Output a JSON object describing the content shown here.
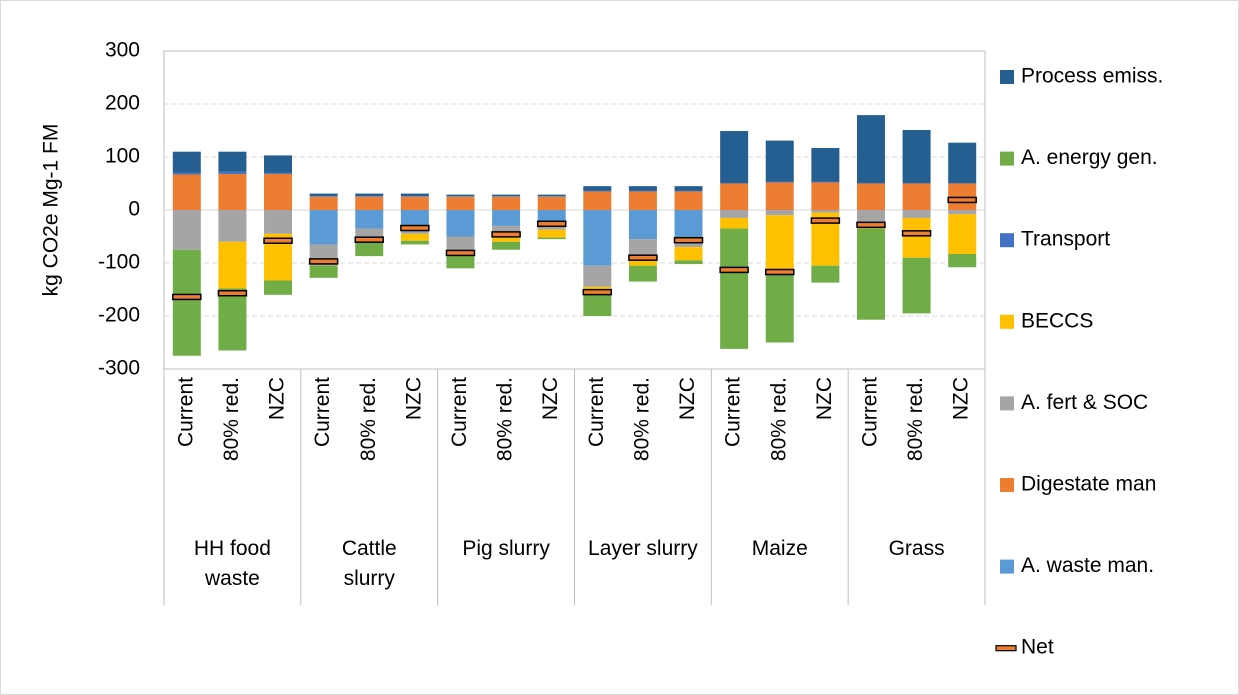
{
  "chart_data": {
    "type": "stacked-bar",
    "y_label": "kg CO2e Mg-1 FM",
    "groups": [
      "HH food waste",
      "Cattle slurry",
      "Pig slurry",
      "Layer slurry",
      "Maize",
      "Grass"
    ],
    "categories": [
      "Current",
      "80% red.",
      "NZC",
      "Current",
      "80% red.",
      "NZC",
      "Current",
      "80% red.",
      "NZC",
      "Current",
      "80% red.",
      "NZC",
      "Current",
      "80% red.",
      "NZC",
      "Current",
      "80% red.",
      "NZC"
    ],
    "ylim": [
      -300,
      300
    ],
    "yticks": [
      -300,
      -200,
      -100,
      0,
      100,
      200,
      300
    ],
    "grid": true,
    "series": [
      {
        "name": "Process emiss.",
        "color": "#255e91",
        "values": [
          40,
          38,
          33,
          5,
          5,
          5,
          3,
          3,
          3,
          9,
          9,
          9,
          98,
          78,
          64,
          128,
          100,
          76
        ]
      },
      {
        "name": "A. energy gen.",
        "color": "#70ad47",
        "values": [
          -200,
          -117,
          -27,
          -23,
          -27,
          -7,
          -30,
          -15,
          -3,
          -50,
          -30,
          -7,
          -227,
          -135,
          -32,
          -172,
          -105,
          -25
        ]
      },
      {
        "name": "Transport",
        "color": "#4472c4",
        "values": [
          3,
          4,
          2,
          1,
          1,
          1,
          1,
          1,
          1,
          1,
          1,
          1,
          1,
          1,
          1,
          1,
          1,
          1
        ]
      },
      {
        "name": "BECCS",
        "color": "#ffc000",
        "values": [
          0,
          -88,
          -88,
          0,
          -5,
          -13,
          0,
          -15,
          -15,
          -5,
          -20,
          -25,
          -20,
          -105,
          -100,
          -5,
          -75,
          -75
        ]
      },
      {
        "name": "A. fert & SOC",
        "color": "#a5a5a5",
        "values": [
          -75,
          -60,
          -45,
          -40,
          -20,
          -15,
          -30,
          -15,
          -12,
          -40,
          -30,
          -15,
          -15,
          -10,
          -5,
          -30,
          -15,
          -8
        ]
      },
      {
        "name": "Digestate man",
        "color": "#ed7d31",
        "values": [
          67,
          68,
          68,
          25,
          25,
          25,
          25,
          25,
          25,
          35,
          35,
          35,
          50,
          52,
          52,
          50,
          50,
          50
        ]
      },
      {
        "name": "A. waste man.",
        "color": "#5b9bd5",
        "values": [
          0,
          0,
          0,
          -65,
          -35,
          -30,
          -50,
          -30,
          -25,
          -105,
          -55,
          -55,
          0,
          0,
          0,
          0,
          0,
          0
        ]
      }
    ],
    "net": {
      "name": "Net",
      "color": "#ed7d31",
      "values": [
        -164,
        -157,
        -58,
        -97,
        -56,
        -34,
        -81,
        -46,
        -26,
        -155,
        -90,
        -57,
        -113,
        -117,
        -20,
        -28,
        -44,
        19
      ]
    }
  }
}
